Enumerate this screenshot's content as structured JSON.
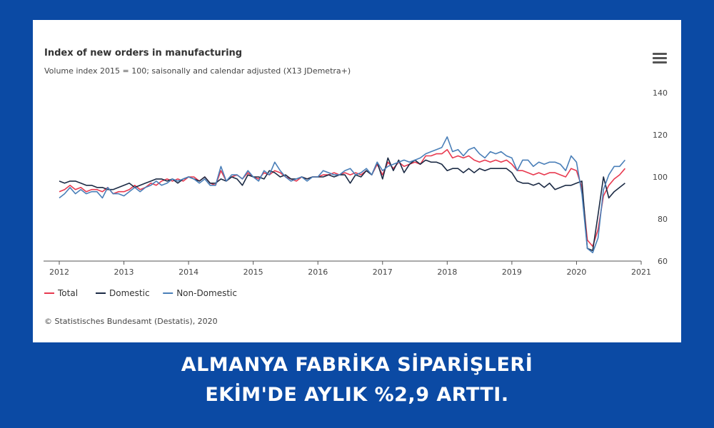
{
  "headline": {
    "line1": "ALMANYA FABRİKA SİPARİŞLERİ",
    "line2": "EKİM'DE AYLIK %2,9 ARTTI."
  },
  "credit": "© Statistisches Bundesamt (Destatis), 2020",
  "chart_data": {
    "type": "line",
    "title": "Index of new orders in manufacturing",
    "subtitle": "Volume index 2015 = 100; saisonally and calendar adjusted (X13 JDemetra+)",
    "x_ticks": [
      "2012",
      "2013",
      "2014",
      "2015",
      "2016",
      "2017",
      "2018",
      "2019",
      "2020",
      "2021"
    ],
    "y_ticks": [
      60,
      80,
      100,
      120,
      140
    ],
    "xlim": [
      2012,
      2021
    ],
    "ylim": [
      60,
      140
    ],
    "y_axis_side": "right",
    "legend_position": "bottom-left",
    "grid": false,
    "x": [
      2012.0,
      2012.083,
      2012.167,
      2012.25,
      2012.333,
      2012.417,
      2012.5,
      2012.583,
      2012.667,
      2012.75,
      2012.833,
      2012.917,
      2013.0,
      2013.083,
      2013.167,
      2013.25,
      2013.333,
      2013.417,
      2013.5,
      2013.583,
      2013.667,
      2013.75,
      2013.833,
      2013.917,
      2014.0,
      2014.083,
      2014.167,
      2014.25,
      2014.333,
      2014.417,
      2014.5,
      2014.583,
      2014.667,
      2014.75,
      2014.833,
      2014.917,
      2015.0,
      2015.083,
      2015.167,
      2015.25,
      2015.333,
      2015.417,
      2015.5,
      2015.583,
      2015.667,
      2015.75,
      2015.833,
      2015.917,
      2016.0,
      2016.083,
      2016.167,
      2016.25,
      2016.333,
      2016.417,
      2016.5,
      2016.583,
      2016.667,
      2016.75,
      2016.833,
      2016.917,
      2017.0,
      2017.083,
      2017.167,
      2017.25,
      2017.333,
      2017.417,
      2017.5,
      2017.583,
      2017.667,
      2017.75,
      2017.833,
      2017.917,
      2018.0,
      2018.083,
      2018.167,
      2018.25,
      2018.333,
      2018.417,
      2018.5,
      2018.583,
      2018.667,
      2018.75,
      2018.833,
      2018.917,
      2019.0,
      2019.083,
      2019.167,
      2019.25,
      2019.333,
      2019.417,
      2019.5,
      2019.583,
      2019.667,
      2019.75,
      2019.833,
      2019.917,
      2020.0,
      2020.083,
      2020.167,
      2020.25,
      2020.333,
      2020.417,
      2020.5,
      2020.583,
      2020.667,
      2020.75
    ],
    "series": [
      {
        "name": "Total",
        "color": "#e8394f",
        "values": [
          93,
          94,
          96,
          94,
          95,
          93,
          94,
          94,
          93,
          95,
          92,
          93,
          93,
          94,
          96,
          94,
          95,
          97,
          96,
          98,
          99,
          98,
          99,
          98,
          100,
          100,
          98,
          100,
          97,
          96,
          103,
          98,
          100,
          101,
          99,
          102,
          100,
          99,
          102,
          101,
          103,
          102,
          100,
          99,
          98,
          100,
          99,
          100,
          100,
          101,
          101,
          102,
          101,
          102,
          101,
          102,
          101,
          103,
          101,
          106,
          101,
          107,
          104,
          107,
          105,
          106,
          107,
          106,
          110,
          110,
          111,
          111,
          113,
          109,
          110,
          109,
          110,
          108,
          107,
          108,
          107,
          108,
          107,
          108,
          106,
          103,
          103,
          102,
          101,
          102,
          101,
          102,
          102,
          101,
          100,
          104,
          103,
          95,
          70,
          67,
          75,
          91,
          96,
          99,
          101,
          104
        ]
      },
      {
        "name": "Domestic",
        "color": "#1c2b45",
        "values": [
          98,
          97,
          98,
          98,
          97,
          96,
          96,
          95,
          95,
          94,
          94,
          95,
          96,
          97,
          95,
          96,
          97,
          98,
          99,
          99,
          98,
          99,
          97,
          99,
          100,
          99,
          98,
          100,
          97,
          97,
          99,
          98,
          100,
          99,
          96,
          101,
          100,
          100,
          99,
          103,
          102,
          100,
          101,
          99,
          99,
          100,
          99,
          100,
          100,
          100,
          101,
          100,
          101,
          101,
          97,
          101,
          100,
          103,
          101,
          107,
          99,
          109,
          103,
          108,
          102,
          106,
          108,
          106,
          108,
          107,
          107,
          106,
          103,
          104,
          104,
          102,
          104,
          102,
          104,
          103,
          104,
          104,
          104,
          104,
          102,
          98,
          97,
          97,
          96,
          97,
          95,
          97,
          94,
          95,
          96,
          96,
          97,
          98,
          66,
          65,
          82,
          100,
          90,
          93,
          95,
          97
        ]
      },
      {
        "name": "Non-Domestic",
        "color": "#4a7fb8",
        "values": [
          90,
          92,
          95,
          92,
          94,
          92,
          93,
          93,
          90,
          95,
          92,
          92,
          91,
          93,
          95,
          93,
          95,
          96,
          98,
          96,
          97,
          99,
          98,
          99,
          100,
          99,
          97,
          99,
          96,
          96,
          105,
          98,
          101,
          101,
          99,
          103,
          100,
          98,
          103,
          101,
          107,
          103,
          100,
          98,
          99,
          100,
          98,
          100,
          100,
          103,
          102,
          101,
          101,
          103,
          104,
          101,
          102,
          104,
          101,
          107,
          103,
          105,
          106,
          107,
          108,
          107,
          108,
          109,
          111,
          112,
          113,
          114,
          119,
          112,
          113,
          110,
          113,
          114,
          111,
          109,
          112,
          111,
          112,
          110,
          109,
          103,
          108,
          108,
          105,
          107,
          106,
          107,
          107,
          106,
          103,
          110,
          107,
          92,
          66,
          64,
          71,
          94,
          101,
          105,
          105,
          108
        ]
      }
    ]
  }
}
